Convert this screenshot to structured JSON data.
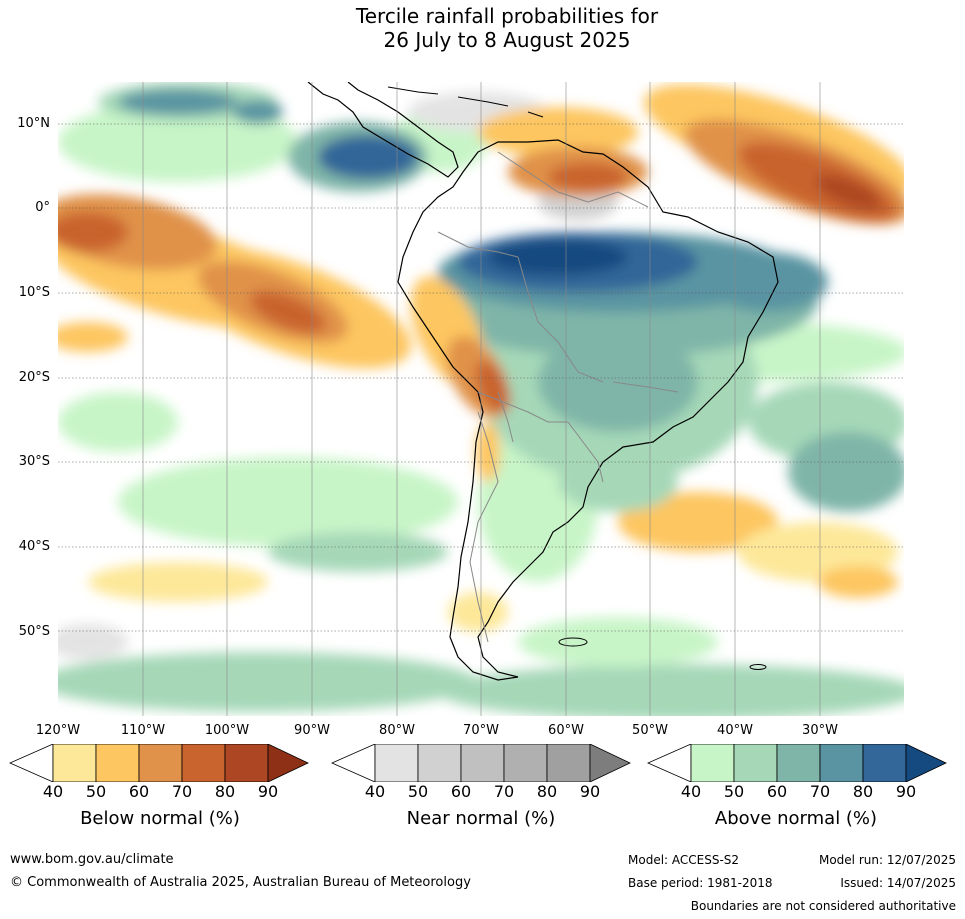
{
  "title": {
    "line1": "Tercile rainfall probabilities for",
    "line2": "26 July to 8 August 2025"
  },
  "map": {
    "lat_labels": [
      "10°N",
      "0°",
      "10°S",
      "20°S",
      "30°S",
      "40°S",
      "50°S"
    ],
    "lon_labels": [
      "120°W",
      "110°W",
      "100°W",
      "90°W",
      "80°W",
      "70°W",
      "60°W",
      "50°W",
      "40°W",
      "30°W"
    ],
    "region": "South America"
  },
  "legends": [
    {
      "title": "Below normal (%)",
      "ticks": [
        "40",
        "50",
        "60",
        "70",
        "80",
        "90"
      ],
      "colors": [
        "#fde89a",
        "#fdc661",
        "#e0924a",
        "#c9642f",
        "#ad4622",
        "#8e3016"
      ]
    },
    {
      "title": "Near normal (%)",
      "ticks": [
        "40",
        "50",
        "60",
        "70",
        "80",
        "90"
      ],
      "colors": [
        "#e3e3e3",
        "#d1d1d1",
        "#c0c0c0",
        "#b0b0b0",
        "#a0a0a0",
        "#7d7d7d"
      ]
    },
    {
      "title": "Above normal (%)",
      "ticks": [
        "40",
        "50",
        "60",
        "70",
        "80",
        "90"
      ],
      "colors": [
        "#c8f5c8",
        "#a6d8b8",
        "#7fb5a8",
        "#5a94a2",
        "#336699",
        "#154a80"
      ]
    }
  ],
  "footer": {
    "website": "www.bom.gov.au/climate",
    "copyright": "© Commonwealth of Australia 2025, Australian Bureau of Meteorology",
    "model": "Model: ACCESS-S2",
    "base_period": "Base period: 1981-2018",
    "model_run": "Model run: 12/07/2025",
    "issued": "Issued: 14/07/2025",
    "disclaimer": "Boundaries are not considered authoritative"
  }
}
